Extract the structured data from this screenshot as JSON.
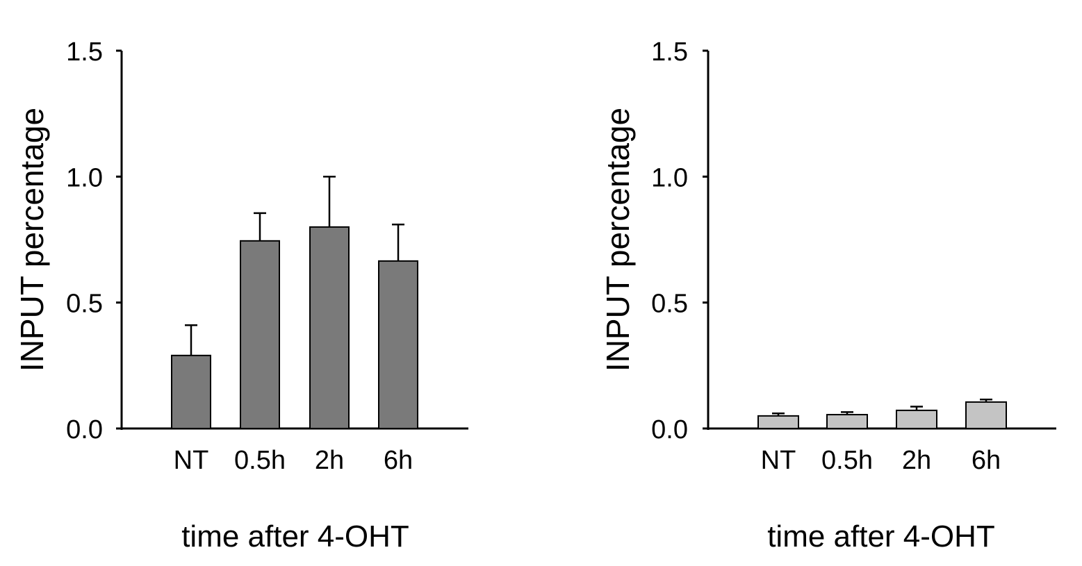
{
  "chart_data": [
    {
      "type": "bar",
      "title": "",
      "categories": [
        "NT",
        "0.5h",
        "2h",
        "6h"
      ],
      "values": [
        0.29,
        0.745,
        0.8,
        0.665
      ],
      "errors": [
        0.12,
        0.11,
        0.2,
        0.145
      ],
      "xlabel": "time after 4-OHT",
      "ylabel": "INPUT percentage",
      "ylim": [
        0,
        1.5
      ],
      "yticks": [
        "0.0",
        "0.5",
        "1.0",
        "1.5"
      ],
      "grid": false,
      "bar_color": "#7a7a7a"
    },
    {
      "type": "bar",
      "title": "",
      "categories": [
        "NT",
        "0.5h",
        "2h",
        "6h"
      ],
      "values": [
        0.05,
        0.055,
        0.072,
        0.105
      ],
      "errors": [
        0.01,
        0.01,
        0.015,
        0.01
      ],
      "xlabel": "time after 4-OHT",
      "ylabel": "INPUT percentage",
      "ylim": [
        0,
        1.5
      ],
      "yticks": [
        "0.0",
        "0.5",
        "1.0",
        "1.5"
      ],
      "grid": false,
      "bar_color": "#c4c4c4"
    }
  ]
}
